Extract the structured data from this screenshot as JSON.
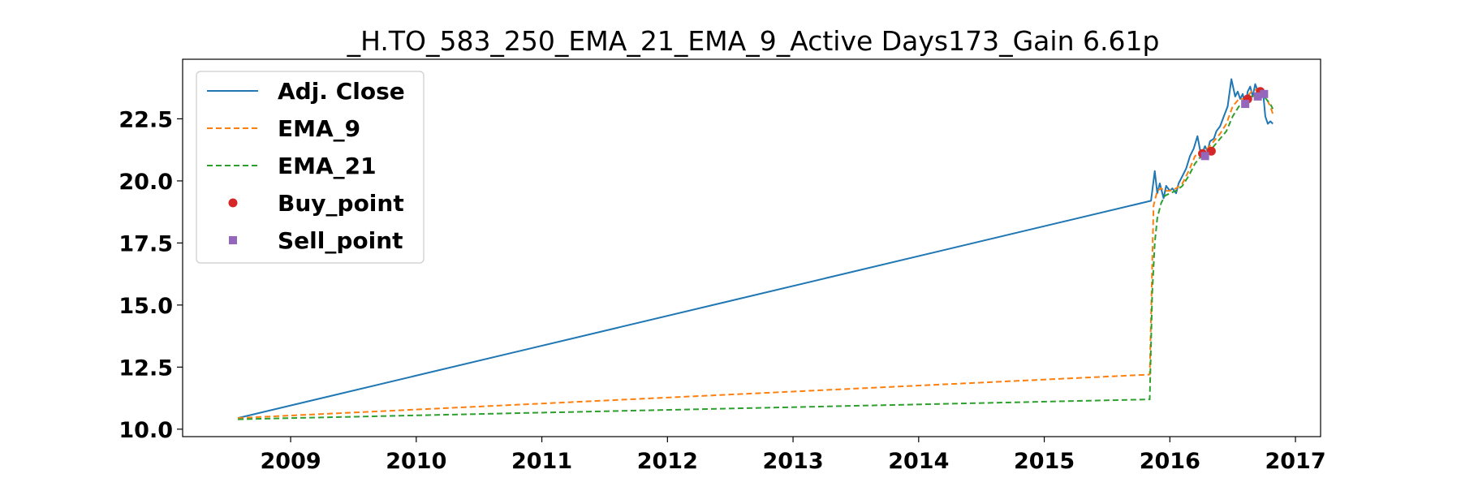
{
  "chart_data": {
    "type": "line",
    "title": "_H.TO_583_250_EMA_21_EMA_9_Active Days173_Gain   6.61p",
    "xlabel": "",
    "ylabel": "",
    "xlim": [
      2008.14,
      2017.2
    ],
    "ylim": [
      9.7,
      24.9
    ],
    "x_ticks": [
      {
        "value": 2009,
        "label": "2009"
      },
      {
        "value": 2010,
        "label": "2010"
      },
      {
        "value": 2011,
        "label": "2011"
      },
      {
        "value": 2012,
        "label": "2012"
      },
      {
        "value": 2013,
        "label": "2013"
      },
      {
        "value": 2014,
        "label": "2014"
      },
      {
        "value": 2015,
        "label": "2015"
      },
      {
        "value": 2016,
        "label": "2016"
      },
      {
        "value": 2017,
        "label": "2017"
      }
    ],
    "y_ticks": [
      {
        "value": 10.0,
        "label": "10.0"
      },
      {
        "value": 12.5,
        "label": "12.5"
      },
      {
        "value": 15.0,
        "label": "15.0"
      },
      {
        "value": 17.5,
        "label": "17.5"
      },
      {
        "value": 20.0,
        "label": "20.0"
      },
      {
        "value": 22.5,
        "label": "22.5"
      }
    ],
    "legend_position": "upper-left",
    "series": [
      {
        "name": "Adj. Close",
        "color": "#1f77b4",
        "style": "solid",
        "x": [
          2008.58,
          2015.85,
          2015.88,
          2015.9,
          2015.92,
          2015.95,
          2015.97,
          2016.0,
          2016.02,
          2016.05,
          2016.07,
          2016.1,
          2016.13,
          2016.16,
          2016.19,
          2016.22,
          2016.25,
          2016.28,
          2016.3,
          2016.32,
          2016.35,
          2016.37,
          2016.4,
          2016.43,
          2016.46,
          2016.49,
          2016.52,
          2016.54,
          2016.56,
          2016.58,
          2016.6,
          2016.62,
          2016.64,
          2016.66,
          2016.68,
          2016.7,
          2016.72,
          2016.74,
          2016.76,
          2016.78,
          2016.8,
          2016.82
        ],
        "y": [
          10.45,
          19.2,
          20.4,
          19.5,
          19.9,
          19.3,
          19.8,
          19.6,
          19.7,
          19.5,
          19.9,
          20.2,
          20.5,
          21.0,
          21.3,
          21.8,
          21.0,
          21.4,
          21.2,
          21.6,
          21.7,
          22.0,
          22.2,
          22.6,
          23.0,
          24.1,
          23.4,
          23.6,
          23.3,
          23.5,
          23.0,
          23.6,
          23.8,
          23.4,
          23.9,
          23.6,
          23.5,
          23.7,
          22.6,
          22.3,
          22.4,
          22.3
        ]
      },
      {
        "name": "EMA_9",
        "color": "#ff7f0e",
        "style": "dashed",
        "x": [
          2008.58,
          2015.84,
          2015.87,
          2015.9,
          2015.93,
          2015.96,
          2016.0,
          2016.05,
          2016.1,
          2016.15,
          2016.2,
          2016.25,
          2016.3,
          2016.35,
          2016.4,
          2016.45,
          2016.5,
          2016.55,
          2016.6,
          2016.65,
          2016.7,
          2016.75,
          2016.8,
          2016.82
        ],
        "y": [
          10.45,
          12.2,
          19.0,
          19.6,
          19.7,
          19.6,
          19.6,
          19.7,
          19.9,
          20.4,
          21.0,
          21.2,
          21.3,
          21.6,
          21.9,
          22.3,
          23.0,
          23.3,
          23.3,
          23.6,
          23.7,
          23.5,
          23.0,
          22.7
        ]
      },
      {
        "name": "EMA_21",
        "color": "#2ca02c",
        "style": "dashed",
        "x": [
          2008.58,
          2015.84,
          2015.86,
          2015.88,
          2015.9,
          2015.93,
          2015.96,
          2016.0,
          2016.05,
          2016.1,
          2016.15,
          2016.2,
          2016.25,
          2016.3,
          2016.35,
          2016.4,
          2016.45,
          2016.5,
          2016.55,
          2016.6,
          2016.65,
          2016.7,
          2016.75,
          2016.8,
          2016.82
        ],
        "y": [
          10.4,
          11.2,
          15.5,
          17.5,
          18.5,
          19.1,
          19.4,
          19.5,
          19.6,
          19.8,
          20.2,
          20.7,
          21.0,
          21.1,
          21.4,
          21.7,
          22.0,
          22.6,
          23.0,
          23.2,
          23.4,
          23.5,
          23.4,
          23.1,
          22.9
        ]
      }
    ],
    "markers": [
      {
        "name": "Buy_point",
        "color": "#d62728",
        "shape": "circle",
        "x": [
          2016.26,
          2016.33,
          2016.62,
          2016.72
        ],
        "y": [
          21.1,
          21.2,
          23.3,
          23.6
        ]
      },
      {
        "name": "Sell_point",
        "color": "#9467bd",
        "shape": "square",
        "x": [
          2016.28,
          2016.6,
          2016.7,
          2016.75
        ],
        "y": [
          21.0,
          23.1,
          23.4,
          23.5
        ]
      }
    ]
  }
}
